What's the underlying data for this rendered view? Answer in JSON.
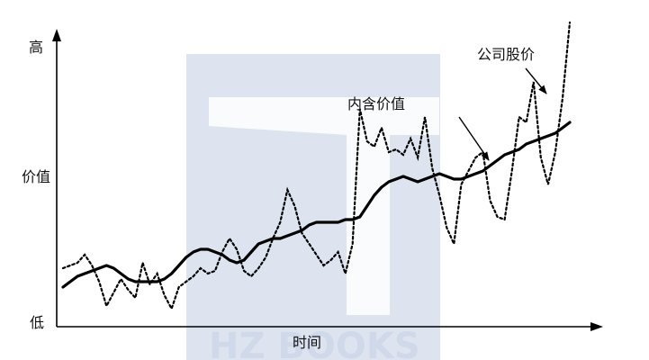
{
  "watermark": {
    "text": "HZ BOOKS",
    "color": "#dde4f0"
  },
  "chart_data": {
    "type": "line",
    "title": "",
    "xlabel": "时间",
    "ylabel": "",
    "y_tick_labels": [
      "高",
      "价值",
      "低"
    ],
    "x": [
      0,
      1,
      2,
      3,
      4,
      5,
      6,
      7,
      8,
      9,
      10,
      11,
      12,
      13,
      14,
      15,
      16,
      17,
      18,
      19,
      20,
      21,
      22,
      23,
      24,
      25,
      26,
      27,
      28,
      29,
      30,
      31,
      32,
      33,
      34,
      35,
      36,
      37,
      38,
      39,
      40,
      41,
      42,
      43,
      44,
      45,
      46,
      47,
      48,
      49,
      50,
      51,
      52,
      53,
      54,
      55,
      56,
      57,
      58,
      59,
      60,
      61,
      62,
      63,
      64,
      65,
      66,
      67,
      68,
      69,
      70
    ],
    "xlim": [
      0,
      70
    ],
    "ylim": [
      0,
      100
    ],
    "grid": false,
    "series": [
      {
        "name": "内含价值",
        "style": "solid",
        "color": "#000000",
        "values": [
          12,
          14,
          16,
          17,
          18,
          19,
          20,
          19,
          17,
          15,
          14,
          14,
          14,
          14,
          15,
          17,
          20,
          23,
          25,
          26,
          26,
          25,
          24,
          22,
          21,
          22,
          25,
          28,
          29,
          30,
          30,
          31,
          32,
          33,
          35,
          36,
          36,
          36,
          36,
          37,
          37,
          38,
          42,
          46,
          49,
          51,
          52,
          53,
          52,
          51,
          52,
          53,
          54,
          53,
          52,
          52,
          53,
          54,
          55,
          57,
          59,
          61,
          62,
          63,
          65,
          66,
          67,
          68,
          69,
          71,
          73
        ]
      },
      {
        "name": "公司股价",
        "style": "dotted",
        "color": "#000000",
        "values": [
          19,
          20,
          21,
          24,
          20,
          14,
          5,
          10,
          15,
          11,
          8,
          21,
          13,
          17,
          9,
          4,
          12,
          14,
          16,
          19,
          17,
          18,
          25,
          30,
          26,
          18,
          16,
          19,
          23,
          30,
          36,
          48,
          42,
          32,
          28,
          24,
          20,
          22,
          25,
          17,
          28,
          78,
          66,
          64,
          71,
          62,
          63,
          61,
          67,
          60,
          75,
          56,
          46,
          34,
          28,
          50,
          55,
          60,
          62,
          44,
          38,
          37,
          55,
          75,
          73,
          88,
          60,
          50,
          62,
          82,
          110
        ]
      }
    ],
    "annotations": [
      {
        "text": "内含价值",
        "points_to": "公司股价"
      },
      {
        "text": "公司股价",
        "points_to": "公司股价"
      }
    ]
  }
}
